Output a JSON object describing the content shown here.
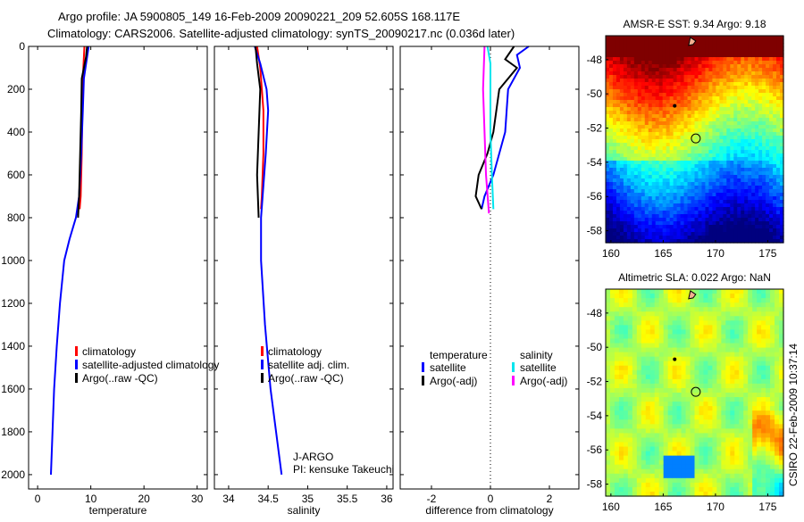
{
  "title_line1": "Argo profile: JA 5900805_149 16-Feb-2009 20090221_209 52.605S 168.117E",
  "title_line2": "Climatology: CARS2006. Satellite-adjusted climatology: synTS_20090217.nc (0.036d later)",
  "chart_data": [
    {
      "type": "line",
      "xlabel": "temperature",
      "xlim": [
        -1.7,
        31.9
      ],
      "ylim": [
        0,
        2067
      ],
      "reversed_y": true,
      "xticks": [
        "0",
        "10",
        "20",
        "30"
      ],
      "xtickv": [
        0,
        10,
        20,
        30
      ],
      "yticks": [
        "0",
        "200",
        "400",
        "600",
        "800",
        "1000",
        "1200",
        "1400",
        "1600",
        "1800",
        "2000"
      ],
      "legend": [
        "climatology",
        "satellite-adjusted climatology",
        "Argo(..raw -QC)"
      ],
      "series": [
        {
          "name": "climatology",
          "color": "#ff0000",
          "points": [
            [
              8.8,
              0
            ],
            [
              8.6,
              100
            ],
            [
              8.4,
              300
            ],
            [
              8.3,
              500
            ],
            [
              8.1,
              700
            ],
            [
              7.9,
              760
            ]
          ]
        },
        {
          "name": "satellite-adjusted climatology",
          "color": "#0000ff",
          "points": [
            [
              9.6,
              0
            ],
            [
              9.3,
              50
            ],
            [
              8.7,
              150
            ],
            [
              8.5,
              300
            ],
            [
              8.2,
              500
            ],
            [
              7.8,
              700
            ],
            [
              7.2,
              800
            ],
            [
              6.0,
              900
            ],
            [
              5.0,
              1000
            ],
            [
              4.2,
              1200
            ],
            [
              3.6,
              1400
            ],
            [
              3.1,
              1600
            ],
            [
              2.8,
              1800
            ],
            [
              2.5,
              2000
            ]
          ]
        },
        {
          "name": "Argo(..raw -QC)",
          "color": "#000000",
          "points": [
            [
              9.3,
              0
            ],
            [
              9.1,
              50
            ],
            [
              8.3,
              150
            ],
            [
              8.2,
              300
            ],
            [
              8.0,
              500
            ],
            [
              7.8,
              700
            ],
            [
              7.6,
              800
            ]
          ]
        }
      ]
    },
    {
      "type": "line",
      "xlabel": "salinity",
      "xlim": [
        33.82,
        36.08
      ],
      "ylim": [
        0,
        2067
      ],
      "reversed_y": true,
      "xticks": [
        "34",
        "34.5",
        "35",
        "35.5",
        "36"
      ],
      "xtickv": [
        34,
        34.5,
        35,
        35.5,
        36
      ],
      "legend": [
        "climatology",
        "satellite adj. clim.",
        "Argo(..raw -QC)"
      ],
      "annotation": [
        "J-ARGO",
        "PI: kensuke Takeuchi"
      ],
      "series": [
        {
          "name": "climatology",
          "color": "#ff0000",
          "points": [
            [
              34.36,
              0
            ],
            [
              34.4,
              100
            ],
            [
              34.44,
              300
            ],
            [
              34.44,
              500
            ],
            [
              34.42,
              700
            ],
            [
              34.41,
              760
            ]
          ]
        },
        {
          "name": "satellite adj. clim.",
          "color": "#0000ff",
          "points": [
            [
              34.33,
              0
            ],
            [
              34.4,
              80
            ],
            [
              34.48,
              200
            ],
            [
              34.5,
              300
            ],
            [
              34.47,
              500
            ],
            [
              34.43,
              700
            ],
            [
              34.41,
              800
            ],
            [
              34.41,
              1000
            ],
            [
              34.46,
              1300
            ],
            [
              34.53,
              1600
            ],
            [
              34.6,
              1800
            ],
            [
              34.67,
              2000
            ]
          ]
        },
        {
          "name": "Argo(..raw -QC)",
          "color": "#000000",
          "points": [
            [
              34.34,
              0
            ],
            [
              34.36,
              80
            ],
            [
              34.4,
              200
            ],
            [
              34.38,
              400
            ],
            [
              34.36,
              600
            ],
            [
              34.38,
              800
            ]
          ]
        }
      ]
    },
    {
      "type": "line",
      "xlabel": "difference from climatology",
      "xlim": [
        -3.06,
        3.0
      ],
      "ylim": [
        0,
        2067
      ],
      "reversed_y": true,
      "xticks": [
        "-2",
        "0",
        "2"
      ],
      "xtickv": [
        -2,
        0,
        2
      ],
      "legend_headers": [
        "temperature",
        "salinity"
      ],
      "legend": [
        "satellite",
        "Argo(-adj)",
        "satellite",
        "Argo(-adj)"
      ],
      "series": [
        {
          "name": "temperature satellite",
          "color": "#0000ff",
          "points": [
            [
              1.3,
              0
            ],
            [
              0.9,
              40
            ],
            [
              1.0,
              100
            ],
            [
              0.6,
              200
            ],
            [
              0.55,
              300
            ],
            [
              0.5,
              400
            ],
            [
              0.3,
              500
            ],
            [
              0.1,
              600
            ],
            [
              -0.2,
              700
            ],
            [
              -0.3,
              760
            ]
          ]
        },
        {
          "name": "temperature Argo(-adj)",
          "color": "#000000",
          "points": [
            [
              0.8,
              0
            ],
            [
              0.5,
              60
            ],
            [
              0.9,
              100
            ],
            [
              0.3,
              200
            ],
            [
              0.2,
              300
            ],
            [
              0.1,
              400
            ],
            [
              -0.1,
              500
            ],
            [
              -0.4,
              600
            ],
            [
              -0.5,
              700
            ],
            [
              -0.3,
              760
            ]
          ]
        },
        {
          "name": "salinity satellite",
          "color": "#00e5ee",
          "points": [
            [
              -0.1,
              0
            ],
            [
              0.0,
              80
            ],
            [
              0.0,
              200
            ],
            [
              0.0,
              400
            ],
            [
              0.05,
              600
            ],
            [
              0.1,
              760
            ]
          ]
        },
        {
          "name": "salinity Argo(-adj)",
          "color": "#ff00ff",
          "points": [
            [
              -0.2,
              0
            ],
            [
              -0.25,
              200
            ],
            [
              -0.2,
              400
            ],
            [
              -0.15,
              600
            ],
            [
              -0.05,
              780
            ]
          ]
        }
      ]
    },
    {
      "type": "heatmap",
      "title": "AMSR-E SST: 9.34 Argo: 9.18",
      "xlim": [
        159.5,
        176.5
      ],
      "ylim": [
        -58.7,
        -46.6
      ],
      "xticks": [
        "160",
        "165",
        "170",
        "175"
      ],
      "xtickv": [
        160,
        165,
        170,
        175
      ],
      "yticks": [
        "-48",
        "-50",
        "-52",
        "-54",
        "-56",
        "-58"
      ],
      "ytickv": [
        -48,
        -50,
        -52,
        -54,
        -56,
        -58
      ],
      "marker": {
        "lon": 168.117,
        "lat": -52.605
      }
    },
    {
      "type": "heatmap",
      "title": "Altimetric SLA: 0.022 Argo: NaN",
      "xlim": [
        159.5,
        176.5
      ],
      "ylim": [
        -58.7,
        -46.6
      ],
      "xticks": [
        "160",
        "165",
        "170",
        "175"
      ],
      "xtickv": [
        160,
        165,
        170,
        175
      ],
      "yticks": [
        "-48",
        "-50",
        "-52",
        "-54",
        "-56",
        "-58"
      ],
      "ytickv": [
        -48,
        -50,
        -52,
        -54,
        -56,
        -58
      ],
      "marker": {
        "lon": 168.117,
        "lat": -52.605
      },
      "side_label": "CSIRO 22-Feb-2009 10:37:14"
    }
  ]
}
